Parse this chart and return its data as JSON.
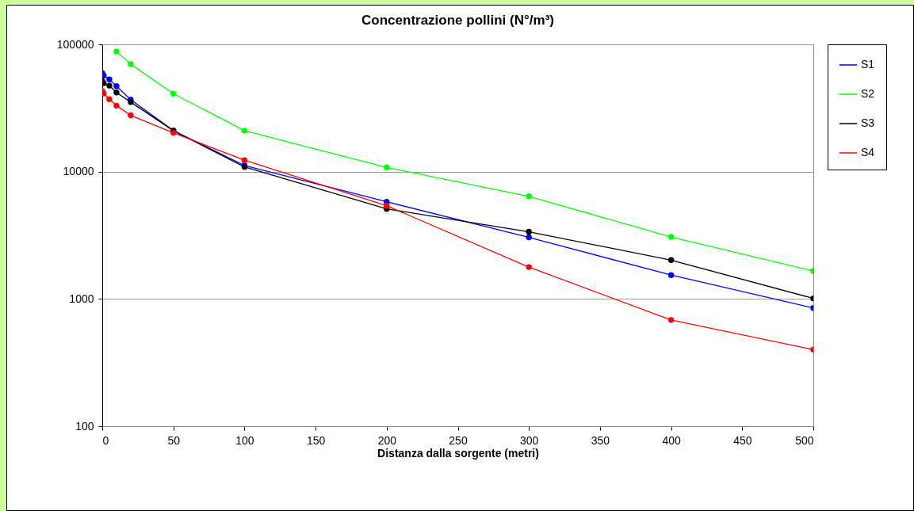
{
  "chart_data": {
    "type": "line",
    "title": "Concentrazione pollini (N°/m³)",
    "xlabel": "Distanza dalla sorgente (metri)",
    "x": [
      0,
      1,
      5,
      10,
      20,
      50,
      100,
      200,
      300,
      400,
      500
    ],
    "series": [
      {
        "name": "S1",
        "color": "#0000ff",
        "values": [
          59500,
          57000,
          53000,
          47000,
          36800,
          21000,
          11200,
          5800,
          3050,
          1540,
          850
        ]
      },
      {
        "name": "S2",
        "color": "#00ff00",
        "values": [
          null,
          null,
          null,
          88000,
          70000,
          41000,
          21000,
          10800,
          6400,
          3070,
          1660
        ]
      },
      {
        "name": "S3",
        "color": "#000000",
        "values": [
          51500,
          49500,
          47400,
          41900,
          35200,
          21000,
          10900,
          5100,
          3370,
          2020,
          1010
        ]
      },
      {
        "name": "S4",
        "color": "#ff0000",
        "values": [
          43000,
          41100,
          37100,
          33000,
          27700,
          20200,
          12300,
          5400,
          1780,
          684,
          400
        ]
      }
    ],
    "log": true,
    "xlim": [
      0,
      500
    ],
    "xticks": [
      0,
      50,
      100,
      150,
      200,
      250,
      300,
      350,
      400,
      450,
      500
    ],
    "ylim": [
      100,
      100000
    ],
    "yticks": [
      100,
      1000,
      10000,
      100000
    ],
    "grid": "y",
    "legend": "right",
    "marker": "circle",
    "line_style": "solid"
  }
}
